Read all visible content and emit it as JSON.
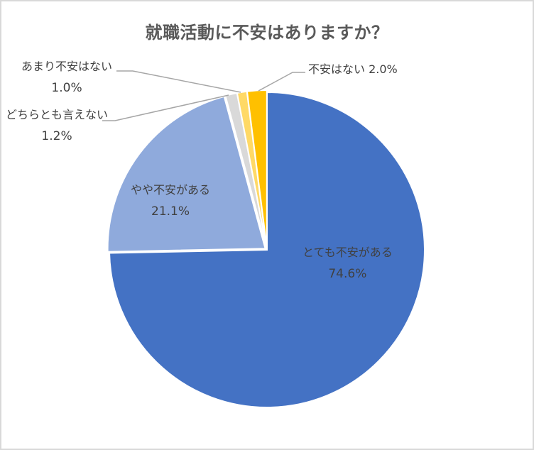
{
  "chart_data": {
    "type": "pie",
    "title": "就職活動に不安はありますか？",
    "start_angle_deg": 0,
    "direction": "clockwise",
    "categories": [
      "とても不安がある",
      "やや不安がある",
      "どちらとも言えない",
      "あまり不安はない",
      "不安はない"
    ],
    "values": [
      74.6,
      21.1,
      1.2,
      1.0,
      2.0
    ],
    "unit": "%",
    "colors": [
      "#4472C4",
      "#8FAADC",
      "#D9D9D9",
      "#FFD966",
      "#FFC000"
    ],
    "labels": [
      {
        "name": "とても不安がある",
        "value": "74.6%",
        "position": "inside"
      },
      {
        "name": "やや不安がある",
        "value": "21.1%",
        "position": "inside"
      },
      {
        "name": "どちらとも言えない",
        "value": "1.2%",
        "position": "outside-leader"
      },
      {
        "name": "あまり不安はない",
        "value": "1.0%",
        "position": "outside-leader"
      },
      {
        "name": "不安はない",
        "value": "2.0%",
        "position": "outside-leader"
      }
    ],
    "legend": "none"
  },
  "labels": {
    "s0_name": "とても不安がある",
    "s0_pct": "74.6%",
    "s1_name": "やや不安がある",
    "s1_pct": "21.1%",
    "s2_name": "どちらとも言えない",
    "s2_pct": "1.2%",
    "s3_name": "あまり不安はない",
    "s3_pct": "1.0%",
    "s4_text": "不安はない 2.0%"
  }
}
